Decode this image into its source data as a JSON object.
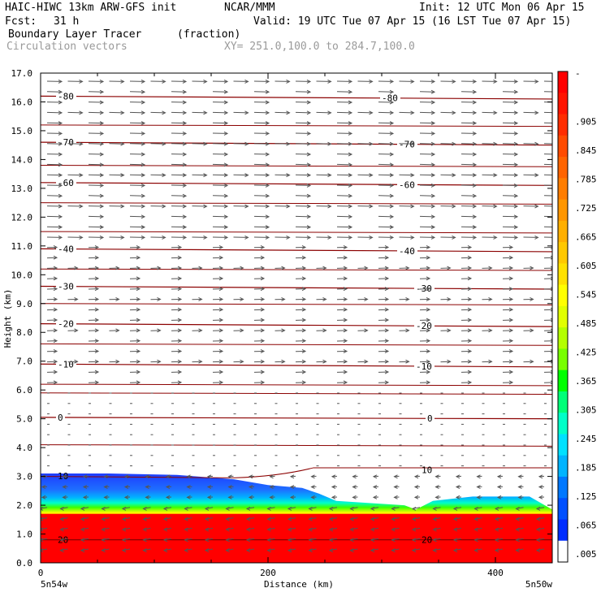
{
  "header": {
    "model": "HAIC-HIWC 13km ARW-GFS init",
    "center": "NCAR/MMM",
    "init": "Init: 12 UTC Mon 06 Apr 15",
    "fcst_label": "Fcst:",
    "fcst_value": "31 h",
    "valid": "Valid: 19 UTC Tue 07 Apr 15 (16 LST Tue 07 Apr 15)",
    "field": "Boundary Layer Tracer",
    "units": "(fraction)",
    "vectors": "Circulation vectors",
    "xy": "XY= 251.0,100.0 to 284.7,100.0"
  },
  "chart_data": {
    "type": "cross-section",
    "ylabel": "Height (km)",
    "xlabel": "Distance (km)",
    "x_left_label": "5n54w",
    "x_right_label": "5n50w",
    "xlim": [
      0,
      450
    ],
    "ylim": [
      0,
      17
    ],
    "yticks": [
      "0.0",
      "1.0",
      "2.0",
      "3.0",
      "4.0",
      "5.0",
      "6.0",
      "7.0",
      "8.0",
      "9.0",
      "10.0",
      "11.0",
      "12.0",
      "13.0",
      "14.0",
      "15.0",
      "16.0",
      "17.0"
    ],
    "xticks": [
      "0",
      "200",
      "400"
    ],
    "colorbar_labels": [
      "-",
      ".905",
      ".845",
      ".785",
      ".725",
      ".665",
      ".605",
      ".545",
      ".485",
      ".425",
      ".365",
      ".305",
      ".245",
      ".185",
      ".125",
      ".065",
      ".005"
    ],
    "colorbar_colors": [
      "#ff0000",
      "#ff1400",
      "#ff2d00",
      "#ff4b00",
      "#ff6400",
      "#ff7d00",
      "#ff9600",
      "#ffaf00",
      "#ffc800",
      "#ffe100",
      "#ffff00",
      "#e1ff00",
      "#b4ff00",
      "#78ff00",
      "#00ff00",
      "#00ff78",
      "#00ffc8",
      "#00e1ff",
      "#00b4ff",
      "#0078ff",
      "#0050ff",
      "#002dff",
      "#ffffff"
    ],
    "tracer_top_km": [
      {
        "x": 0,
        "y": 3.1
      },
      {
        "x": 60,
        "y": 3.1
      },
      {
        "x": 120,
        "y": 3.05
      },
      {
        "x": 170,
        "y": 2.9
      },
      {
        "x": 200,
        "y": 2.7
      },
      {
        "x": 230,
        "y": 2.6
      },
      {
        "x": 245,
        "y": 2.4
      },
      {
        "x": 260,
        "y": 2.15
      },
      {
        "x": 320,
        "y": 2.0
      },
      {
        "x": 330,
        "y": 1.85
      },
      {
        "x": 345,
        "y": 2.15
      },
      {
        "x": 380,
        "y": 2.3
      },
      {
        "x": 430,
        "y": 2.3
      },
      {
        "x": 450,
        "y": 1.85
      }
    ],
    "temperature_contours": [
      {
        "value": "-80",
        "y_left": 16.2,
        "y_right": 16.1,
        "labels_x": [
          15,
          300
        ]
      },
      {
        "value": "-70",
        "y_left": 14.6,
        "y_right": 14.5,
        "labels_x": [
          15,
          315
        ]
      },
      {
        "value": "-60",
        "y_left": 13.2,
        "y_right": 13.1,
        "labels_x": [
          15,
          315
        ]
      },
      {
        "value": "-40",
        "y_left": 10.9,
        "y_right": 10.8,
        "labels_x": [
          15,
          315
        ]
      },
      {
        "value": "-30",
        "y_left": 9.6,
        "y_right": 9.5,
        "labels_x": [
          15,
          330
        ]
      },
      {
        "value": "-20",
        "y_left": 8.3,
        "y_right": 8.2,
        "labels_x": [
          15,
          330
        ]
      },
      {
        "value": "-10",
        "y_left": 6.9,
        "y_right": 6.8,
        "labels_x": [
          15,
          330
        ]
      },
      {
        "value": "0",
        "y_left": 5.05,
        "y_right": 5.0,
        "labels_x": [
          15,
          340
        ]
      },
      {
        "value": "10",
        "y_left": 3.0,
        "y_right": 3.3,
        "labels_x": [
          15,
          335
        ]
      },
      {
        "value": "20",
        "y_left": 0.8,
        "y_right": 0.8,
        "labels_x": [
          15,
          335
        ]
      }
    ],
    "unlabeled_contour_levels_km": [
      15.2,
      13.8,
      12.5,
      11.5,
      10.2,
      9.0,
      7.6,
      6.2,
      5.9,
      4.1
    ],
    "wind_vectors": "mostly westerly aloft, easterly near surface"
  }
}
